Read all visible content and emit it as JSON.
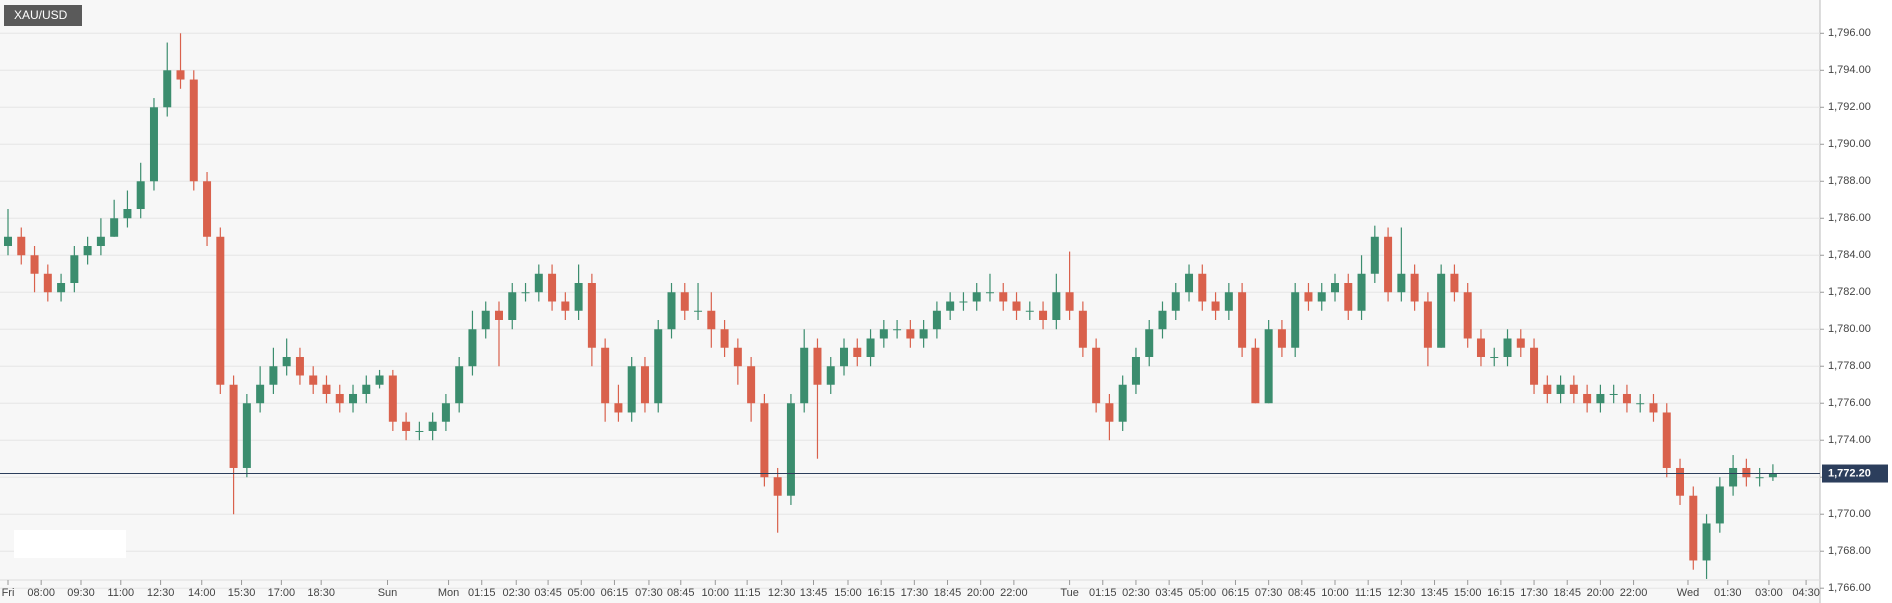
{
  "chart_data": {
    "type": "candlestick",
    "title": "XAU/USD",
    "up_color": "#3b8d6e",
    "down_color": "#d9614c",
    "grid": true,
    "ylim": [
      1765.2,
      1797.8
    ],
    "yticks": [
      {
        "value": 1766,
        "label": "1,766.00"
      },
      {
        "value": 1768,
        "label": "1,768.00"
      },
      {
        "value": 1770,
        "label": "1,770.00"
      },
      {
        "value": 1772,
        "label": "1,772.00"
      },
      {
        "value": 1774,
        "label": "1,774.00"
      },
      {
        "value": 1776,
        "label": "1,776.00"
      },
      {
        "value": 1778,
        "label": "1,778.00"
      },
      {
        "value": 1780,
        "label": "1,780.00"
      },
      {
        "value": 1782,
        "label": "1,782.00"
      },
      {
        "value": 1784,
        "label": "1,784.00"
      },
      {
        "value": 1786,
        "label": "1,786.00"
      },
      {
        "value": 1788,
        "label": "1,788.00"
      },
      {
        "value": 1790,
        "label": "1,790.00"
      },
      {
        "value": 1792,
        "label": "1,792.00"
      },
      {
        "value": 1794,
        "label": "1,794.00"
      },
      {
        "value": 1796,
        "label": "1,796.00"
      }
    ],
    "xticks": [
      {
        "value": 0,
        "label": "Fri"
      },
      {
        "value": 2.5,
        "label": "08:00"
      },
      {
        "value": 5.5,
        "label": "09:30"
      },
      {
        "value": 8.5,
        "label": "11:00"
      },
      {
        "value": 11.5,
        "label": "12:30"
      },
      {
        "value": 14.6,
        "label": "14:00"
      },
      {
        "value": 17.6,
        "label": "15:30"
      },
      {
        "value": 20.6,
        "label": "17:00"
      },
      {
        "value": 23.6,
        "label": "18:30"
      },
      {
        "value": 28.6,
        "label": "Sun"
      },
      {
        "value": 33.2,
        "label": "Mon"
      },
      {
        "value": 35.7,
        "label": "01:15"
      },
      {
        "value": 38.3,
        "label": "02:30"
      },
      {
        "value": 40.7,
        "label": "03:45"
      },
      {
        "value": 43.2,
        "label": "05:00"
      },
      {
        "value": 45.7,
        "label": "06:15"
      },
      {
        "value": 48.3,
        "label": "07:30"
      },
      {
        "value": 50.7,
        "label": "08:45"
      },
      {
        "value": 53.3,
        "label": "10:00"
      },
      {
        "value": 55.7,
        "label": "11:15"
      },
      {
        "value": 58.3,
        "label": "12:30"
      },
      {
        "value": 60.7,
        "label": "13:45"
      },
      {
        "value": 63.3,
        "label": "15:00"
      },
      {
        "value": 65.8,
        "label": "16:15"
      },
      {
        "value": 68.3,
        "label": "17:30"
      },
      {
        "value": 70.8,
        "label": "18:45"
      },
      {
        "value": 73.3,
        "label": "20:00"
      },
      {
        "value": 75.8,
        "label": "22:00"
      },
      {
        "value": 80,
        "label": "Tue"
      },
      {
        "value": 82.5,
        "label": "01:15"
      },
      {
        "value": 85,
        "label": "02:30"
      },
      {
        "value": 87.5,
        "label": "03:45"
      },
      {
        "value": 90,
        "label": "05:00"
      },
      {
        "value": 92.5,
        "label": "06:15"
      },
      {
        "value": 95,
        "label": "07:30"
      },
      {
        "value": 97.5,
        "label": "08:45"
      },
      {
        "value": 100,
        "label": "10:00"
      },
      {
        "value": 102.5,
        "label": "11:15"
      },
      {
        "value": 105,
        "label": "12:30"
      },
      {
        "value": 107.5,
        "label": "13:45"
      },
      {
        "value": 110,
        "label": "15:00"
      },
      {
        "value": 112.5,
        "label": "16:15"
      },
      {
        "value": 115,
        "label": "17:30"
      },
      {
        "value": 117.5,
        "label": "18:45"
      },
      {
        "value": 120,
        "label": "20:00"
      },
      {
        "value": 122.5,
        "label": "22:00"
      },
      {
        "value": 126.6,
        "label": "Wed"
      },
      {
        "value": 129.6,
        "label": "01:30"
      },
      {
        "value": 132.7,
        "label": "03:00"
      },
      {
        "value": 135.5,
        "label": "04:30"
      }
    ],
    "current_price": {
      "value": 1772.2,
      "label": "1,772.20"
    },
    "open": [
      1784.5,
      1785,
      1784,
      1783,
      1782,
      1782.5,
      1784,
      1784.5,
      1785,
      1786,
      1786.5,
      1788,
      1792,
      1794,
      1793.5,
      1788,
      1785,
      1777,
      1772.5,
      1776,
      1777,
      1778,
      1778.5,
      1777.5,
      1777,
      1776.5,
      1776,
      1776.5,
      1777,
      1777.5,
      1775,
      1774.5,
      1774.5,
      1775,
      1776,
      1778,
      1780,
      1781,
      1780.5,
      1782,
      1782,
      1783,
      1781.5,
      1781,
      1782.5,
      1779,
      1776,
      1775.5,
      1778,
      1776,
      1780,
      1782,
      1781,
      1781,
      1780,
      1779,
      1778,
      1776,
      1772,
      1771,
      1776,
      1779,
      1777,
      1778,
      1779,
      1778.5,
      1779.5,
      1780,
      1780,
      1779.5,
      1780,
      1781,
      1781.5,
      1781.5,
      1782,
      1782,
      1781.5,
      1781,
      1781,
      1780.5,
      1782,
      1781,
      1779,
      1776,
      1775,
      1777,
      1778.5,
      1780,
      1781,
      1782,
      1783,
      1781.5,
      1781,
      1782,
      1779,
      1776,
      1780,
      1779,
      1782,
      1781.5,
      1782,
      1782.5,
      1781,
      1783,
      1785,
      1782,
      1783,
      1781.5,
      1779,
      1783,
      1782,
      1779.5,
      1778.5,
      1778.5,
      1779.5,
      1779,
      1777,
      1776.5,
      1777,
      1776.5,
      1776,
      1776.5,
      1776.5,
      1776,
      1776,
      1775.5,
      1772.5,
      1771,
      1767.5,
      1769.5,
      1771.5,
      1772.5,
      1772,
      1772
    ],
    "high": [
      1786.5,
      1785.5,
      1784.5,
      1783.5,
      1783,
      1784.5,
      1785,
      1786,
      1787,
      1787.5,
      1789,
      1792.5,
      1795.5,
      1796,
      1794,
      1788.5,
      1785.5,
      1777.5,
      1776.5,
      1778,
      1779,
      1779.5,
      1779,
      1778,
      1777.5,
      1777,
      1777,
      1777.5,
      1777.8,
      1777.8,
      1775.5,
      1775,
      1775.5,
      1776.5,
      1778.5,
      1781,
      1781.5,
      1781.5,
      1782.5,
      1782.5,
      1783.5,
      1783.5,
      1782,
      1783.5,
      1783,
      1779.5,
      1777,
      1778.5,
      1778.5,
      1780.5,
      1782.5,
      1782.5,
      1782.5,
      1782,
      1780.5,
      1779.5,
      1778.5,
      1776.5,
      1772.5,
      1776.5,
      1780,
      1779.5,
      1778.5,
      1779.5,
      1779.5,
      1780,
      1780.5,
      1780.5,
      1780.5,
      1780.5,
      1781.5,
      1782,
      1782,
      1782.5,
      1783,
      1782.5,
      1782,
      1781.5,
      1781.5,
      1783,
      1784.2,
      1781.5,
      1779.5,
      1776.5,
      1777.5,
      1779,
      1780.5,
      1781.5,
      1782.5,
      1783.5,
      1783.5,
      1782,
      1782.5,
      1782.5,
      1779.5,
      1780.5,
      1780.5,
      1782.5,
      1782.5,
      1782.5,
      1783,
      1783,
      1784,
      1785.6,
      1785.5,
      1785.5,
      1783.5,
      1782,
      1783.5,
      1783.5,
      1782.5,
      1780,
      1779,
      1780,
      1780,
      1779.5,
      1777.5,
      1777.5,
      1777.5,
      1777,
      1777,
      1777,
      1777,
      1776.5,
      1776.5,
      1776,
      1773,
      1771.5,
      1770,
      1772,
      1773.2,
      1773,
      1772.5,
      1772.7
    ],
    "low": [
      1784,
      1783.5,
      1782,
      1781.5,
      1781.5,
      1782,
      1783.5,
      1784,
      1785,
      1785.5,
      1786,
      1787.5,
      1791.5,
      1793,
      1787.5,
      1784.5,
      1776.5,
      1770,
      1772,
      1775.5,
      1776.5,
      1777.5,
      1777,
      1776.5,
      1776,
      1775.5,
      1775.5,
      1776,
      1776.8,
      1774.5,
      1774,
      1774,
      1774,
      1774.5,
      1775.5,
      1777.5,
      1779.5,
      1778,
      1780,
      1781.5,
      1781.5,
      1781,
      1780.5,
      1780.5,
      1778,
      1775,
      1775,
      1775,
      1775.5,
      1775.5,
      1779.5,
      1780.5,
      1780.5,
      1779,
      1778.5,
      1777,
      1775,
      1771.5,
      1769,
      1770.5,
      1775.5,
      1773,
      1776.5,
      1777.5,
      1778,
      1778,
      1779,
      1779.5,
      1779,
      1779,
      1779.5,
      1780.5,
      1781,
      1781,
      1781.5,
      1781,
      1780.5,
      1780.5,
      1780,
      1780,
      1780.5,
      1778.5,
      1775.5,
      1774,
      1774.5,
      1776.5,
      1778,
      1779.5,
      1780.5,
      1781.5,
      1781,
      1780.5,
      1780.5,
      1778.5,
      1776,
      1776,
      1778.5,
      1778.5,
      1781,
      1781,
      1781.5,
      1780.5,
      1780.5,
      1782.5,
      1781.5,
      1781.5,
      1781,
      1778,
      1779,
      1781.5,
      1779,
      1778,
      1778,
      1778,
      1778.5,
      1776.5,
      1776,
      1776,
      1776,
      1775.5,
      1775.5,
      1776,
      1775.5,
      1775.5,
      1775,
      1772,
      1770.5,
      1767,
      1766.5,
      1769,
      1771,
      1771.5,
      1771.5,
      1771.8
    ],
    "close": [
      1785,
      1784,
      1783,
      1782,
      1782.5,
      1784,
      1784.5,
      1785,
      1786,
      1786.5,
      1788,
      1792,
      1794,
      1793.5,
      1788,
      1785,
      1777,
      1772.5,
      1776,
      1777,
      1778,
      1778.5,
      1777.5,
      1777,
      1776.5,
      1776,
      1776.5,
      1777,
      1777.5,
      1775,
      1774.5,
      1774.5,
      1775,
      1776,
      1778,
      1780,
      1781,
      1780.5,
      1782,
      1782,
      1783,
      1781.5,
      1781,
      1782.5,
      1779,
      1776,
      1775.5,
      1778,
      1776,
      1780,
      1782,
      1781,
      1781,
      1780,
      1779,
      1778,
      1776,
      1772,
      1771,
      1776,
      1779,
      1777,
      1778,
      1779,
      1778.5,
      1779.5,
      1780,
      1780,
      1779.5,
      1780,
      1781,
      1781.5,
      1781.5,
      1782,
      1782,
      1781.5,
      1781,
      1781,
      1780.5,
      1782,
      1781,
      1779,
      1776,
      1775,
      1777,
      1778.5,
      1780,
      1781,
      1782,
      1783,
      1781.5,
      1781,
      1782,
      1779,
      1776,
      1780,
      1779,
      1782,
      1781.5,
      1782,
      1782.5,
      1781,
      1783,
      1785,
      1782,
      1783,
      1781.5,
      1779,
      1783,
      1782,
      1779.5,
      1778.5,
      1778.5,
      1779.5,
      1779,
      1777,
      1776.5,
      1777,
      1776.5,
      1776,
      1776.5,
      1776.5,
      1776,
      1776,
      1775.5,
      1772.5,
      1771,
      1767.5,
      1769.5,
      1771.5,
      1772.5,
      1772,
      1772,
      1772.2
    ]
  }
}
